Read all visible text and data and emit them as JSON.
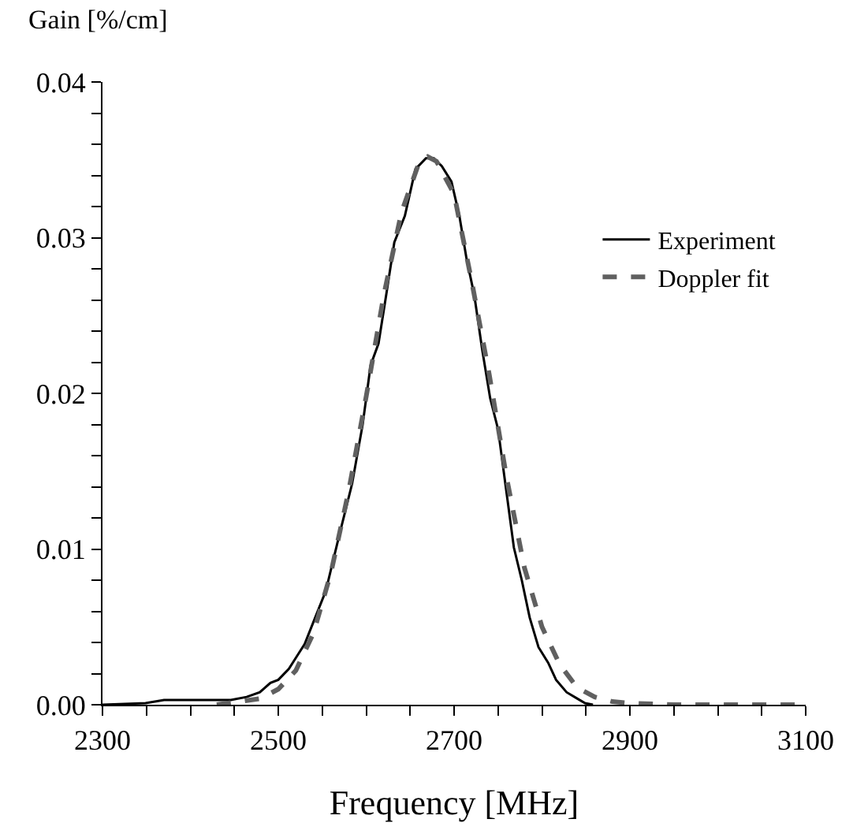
{
  "chart_data": {
    "type": "line",
    "xlabel": "Frequency [MHz]",
    "ylabel": "Gain [%/cm]",
    "xlim": [
      2300,
      3100
    ],
    "ylim": [
      0,
      0.04
    ],
    "xticks": [
      2300,
      {
        "value": 2350,
        "label": null
      },
      {
        "value": 2400,
        "label": null
      },
      {
        "value": 2450,
        "label": null
      },
      2500,
      {
        "value": 2550,
        "label": null
      },
      {
        "value": 2600,
        "label": null
      },
      {
        "value": 2650,
        "label": null
      },
      2700,
      {
        "value": 2750,
        "label": null
      },
      {
        "value": 2800,
        "label": null
      },
      {
        "value": 2850,
        "label": null
      },
      2900,
      {
        "value": 2950,
        "label": null
      },
      {
        "value": 3000,
        "label": null
      },
      {
        "value": 3050,
        "label": null
      },
      3100
    ],
    "yticks": [
      {
        "value": 0,
        "label": "0.00"
      },
      {
        "value": 0.002,
        "label": null
      },
      {
        "value": 0.004,
        "label": null
      },
      {
        "value": 0.006,
        "label": null
      },
      {
        "value": 0.008,
        "label": null
      },
      0.01,
      {
        "value": 0.012,
        "label": null
      },
      {
        "value": 0.014,
        "label": null
      },
      {
        "value": 0.016,
        "label": null
      },
      {
        "value": 0.018,
        "label": null
      },
      0.02,
      {
        "value": 0.022,
        "label": null
      },
      {
        "value": 0.024,
        "label": null
      },
      {
        "value": 0.026,
        "label": null
      },
      {
        "value": 0.028,
        "label": null
      },
      0.03,
      {
        "value": 0.032,
        "label": null
      },
      {
        "value": 0.034,
        "label": null
      },
      {
        "value": 0.036,
        "label": null
      },
      {
        "value": 0.038,
        "label": null
      },
      0.04
    ],
    "legend": "right",
    "marker": "none",
    "series": [
      {
        "name": "Experiment",
        "color": "#000000",
        "line_style": "solid",
        "x": [
          2300,
          2349,
          2370,
          2391,
          2428,
          2446,
          2464,
          2479,
          2491,
          2500,
          2512,
          2521,
          2530,
          2542,
          2554,
          2569,
          2584,
          2596,
          2605,
          2614,
          2623,
          2632,
          2644,
          2656,
          2668,
          2677,
          2686,
          2697,
          2706,
          2714,
          2723,
          2732,
          2741,
          2750,
          2759,
          2768,
          2777,
          2786,
          2796,
          2807,
          2816,
          2828,
          2840,
          2849,
          2858
        ],
        "values": [
          0,
          0.0001,
          0.0003,
          0.0003,
          0.0003,
          0.0003,
          0.0005,
          0.0008,
          0.0014,
          0.0016,
          0.0023,
          0.0031,
          0.0039,
          0.0056,
          0.0073,
          0.0108,
          0.0142,
          0.018,
          0.0218,
          0.0232,
          0.0264,
          0.0297,
          0.0314,
          0.0344,
          0.0351,
          0.0351,
          0.0346,
          0.0336,
          0.0314,
          0.0287,
          0.0263,
          0.0228,
          0.0197,
          0.0177,
          0.0139,
          0.0101,
          0.008,
          0.0056,
          0.0037,
          0.0027,
          0.0016,
          0.0008,
          0.0004,
          0.0001,
          0
        ]
      },
      {
        "name": "Doppler fit",
        "color": "#606060",
        "line_style": "dashed",
        "x": [
          2430,
          2480,
          2500,
          2520,
          2540,
          2560,
          2580,
          2600,
          2620,
          2640,
          2660,
          2670,
          2680,
          2700,
          2720,
          2740,
          2760,
          2780,
          2800,
          2820,
          2840,
          2860,
          2880,
          2900,
          2950,
          3000,
          3100
        ],
        "values": [
          0,
          0.0004,
          0.001,
          0.0022,
          0.0046,
          0.0085,
          0.0137,
          0.0198,
          0.0263,
          0.0316,
          0.0348,
          0.0352,
          0.0349,
          0.0328,
          0.0272,
          0.0212,
          0.0145,
          0.0088,
          0.005,
          0.0026,
          0.0011,
          0.0005,
          0.0002,
          0.0001,
          0,
          0,
          0
        ]
      }
    ]
  }
}
